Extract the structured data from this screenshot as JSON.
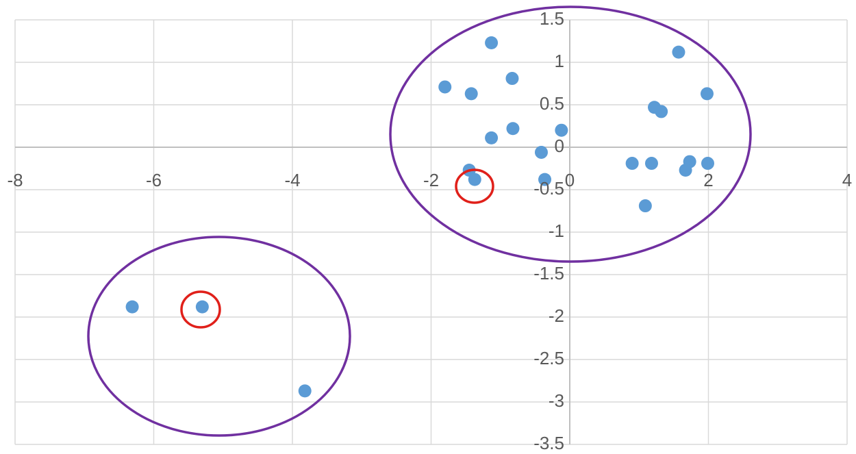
{
  "chart_data": {
    "type": "scatter",
    "x": [
      -1.13,
      1.57,
      -1.8,
      -1.42,
      -0.83,
      1.98,
      1.22,
      1.32,
      -0.82,
      -0.12,
      -1.13,
      -0.41,
      0.9,
      1.18,
      1.73,
      1.99,
      1.67,
      -1.45,
      -1.37,
      -0.36,
      1.09,
      -6.31,
      -5.3,
      -3.82
    ],
    "values": [
      1.23,
      1.12,
      0.71,
      0.63,
      0.81,
      0.63,
      0.47,
      0.42,
      0.22,
      0.2,
      0.11,
      -0.06,
      -0.19,
      -0.19,
      -0.17,
      -0.19,
      -0.27,
      -0.27,
      -0.38,
      -0.38,
      -0.69,
      -1.88,
      -1.88,
      -2.87
    ],
    "color": "#5b9bd5",
    "xlim": [
      -8,
      4
    ],
    "ylim": [
      -3.5,
      1.5
    ],
    "xticks": [
      -8,
      -6,
      -4,
      -2,
      0,
      2,
      4
    ],
    "yticks": [
      -3.5,
      -3,
      -2.5,
      -2,
      -1.5,
      -1,
      -0.5,
      0,
      0.5,
      1,
      1.5
    ],
    "grid": true
  }
}
